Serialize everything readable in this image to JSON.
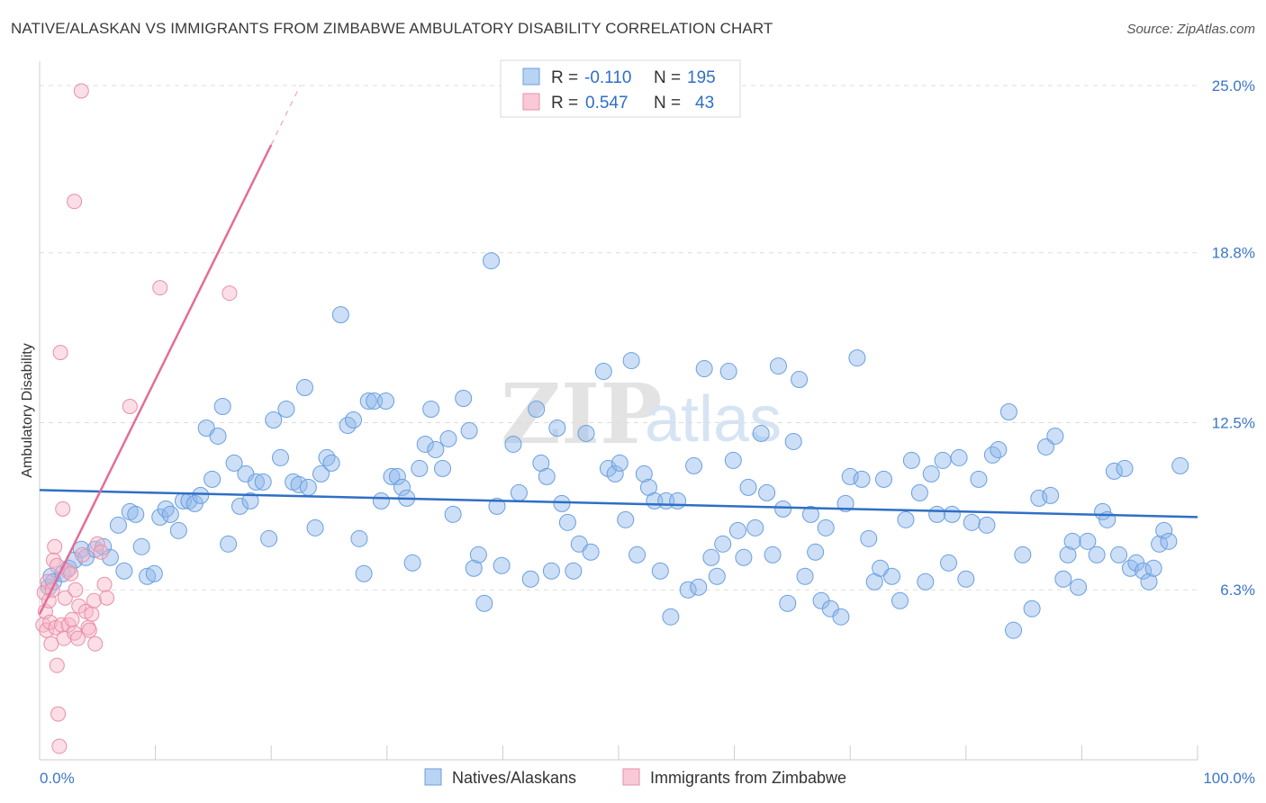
{
  "header": {
    "title": "NATIVE/ALASKAN VS IMMIGRANTS FROM ZIMBABWE AMBULATORY DISABILITY CORRELATION CHART",
    "source": "Source: ZipAtlas.com"
  },
  "watermark": {
    "zip": "ZIP",
    "atlas": "atlas"
  },
  "chart_data": {
    "type": "scatter",
    "title": "NATIVE/ALASKAN VS IMMIGRANTS FROM ZIMBABWE AMBULATORY DISABILITY CORRELATION CHART",
    "xlabel": "",
    "ylabel": "Ambulatory Disability",
    "xlim": [
      0,
      100
    ],
    "ylim": [
      0,
      25.9
    ],
    "x_tick_labels": [
      "0.0%",
      "100.0%"
    ],
    "y_ticks": [
      {
        "value": 6.3,
        "label": "6.3%"
      },
      {
        "value": 12.5,
        "label": "12.5%"
      },
      {
        "value": 18.8,
        "label": "18.8%"
      },
      {
        "value": 25.0,
        "label": "25.0%"
      }
    ],
    "grid": "horizontal dashed",
    "legend_position": "top-center",
    "stats": [
      {
        "r_label": "R =",
        "r": "-0.110",
        "n_label": "N =",
        "n": "195"
      },
      {
        "r_label": "R =",
        "r": "0.547",
        "n_label": "N =",
        "n": "43"
      }
    ],
    "series": [
      {
        "name": "Natives/Alaskans",
        "color": "#8fb8ea",
        "stroke": "#6a9fe0",
        "trend": {
          "x0": 0,
          "y0": 10.0,
          "x1": 100,
          "y1": 9.0,
          "color": "#2f6fc6"
        },
        "points": [
          [
            0.8,
            6.4
          ],
          [
            1.0,
            6.8
          ],
          [
            1.2,
            6.6
          ],
          [
            2.0,
            6.9
          ],
          [
            2.5,
            7.1
          ],
          [
            3.0,
            7.4
          ],
          [
            3.6,
            7.8
          ],
          [
            4.0,
            7.5
          ],
          [
            4.8,
            7.8
          ],
          [
            5.5,
            7.9
          ],
          [
            6.1,
            7.5
          ],
          [
            6.8,
            8.7
          ],
          [
            7.3,
            7.0
          ],
          [
            7.8,
            9.2
          ],
          [
            8.3,
            9.1
          ],
          [
            8.8,
            7.9
          ],
          [
            9.3,
            6.8
          ],
          [
            9.9,
            6.9
          ],
          [
            10.4,
            9.0
          ],
          [
            10.9,
            9.3
          ],
          [
            11.3,
            9.1
          ],
          [
            12.0,
            8.5
          ],
          [
            12.4,
            9.6
          ],
          [
            12.9,
            9.6
          ],
          [
            13.4,
            9.5
          ],
          [
            13.9,
            9.8
          ],
          [
            14.4,
            12.3
          ],
          [
            14.9,
            10.4
          ],
          [
            15.4,
            12.0
          ],
          [
            15.8,
            13.1
          ],
          [
            16.3,
            8.0
          ],
          [
            16.8,
            11.0
          ],
          [
            17.3,
            9.4
          ],
          [
            17.8,
            10.6
          ],
          [
            18.2,
            9.6
          ],
          [
            18.7,
            10.3
          ],
          [
            19.3,
            10.3
          ],
          [
            19.8,
            8.2
          ],
          [
            20.2,
            12.6
          ],
          [
            20.8,
            11.2
          ],
          [
            21.3,
            13.0
          ],
          [
            21.9,
            10.3
          ],
          [
            22.4,
            10.2
          ],
          [
            22.9,
            13.8
          ],
          [
            23.2,
            10.1
          ],
          [
            23.8,
            8.6
          ],
          [
            24.3,
            10.6
          ],
          [
            24.8,
            11.2
          ],
          [
            25.2,
            11.0
          ],
          [
            26.0,
            16.5
          ],
          [
            26.6,
            12.4
          ],
          [
            27.1,
            12.6
          ],
          [
            27.6,
            8.2
          ],
          [
            28.0,
            6.9
          ],
          [
            28.4,
            13.3
          ],
          [
            28.9,
            13.3
          ],
          [
            29.5,
            9.6
          ],
          [
            29.9,
            13.3
          ],
          [
            30.4,
            10.5
          ],
          [
            30.9,
            10.5
          ],
          [
            31.3,
            10.1
          ],
          [
            31.7,
            9.7
          ],
          [
            32.2,
            7.3
          ],
          [
            32.8,
            10.8
          ],
          [
            33.3,
            11.7
          ],
          [
            33.8,
            13.0
          ],
          [
            34.2,
            11.5
          ],
          [
            34.8,
            10.8
          ],
          [
            35.3,
            11.9
          ],
          [
            35.7,
            9.1
          ],
          [
            36.6,
            13.4
          ],
          [
            37.1,
            12.2
          ],
          [
            37.5,
            7.1
          ],
          [
            37.9,
            7.6
          ],
          [
            38.4,
            5.8
          ],
          [
            39.0,
            18.5
          ],
          [
            39.5,
            9.4
          ],
          [
            39.9,
            7.2
          ],
          [
            40.9,
            11.7
          ],
          [
            41.4,
            9.9
          ],
          [
            42.4,
            6.7
          ],
          [
            42.9,
            13.0
          ],
          [
            43.3,
            11.0
          ],
          [
            43.8,
            10.5
          ],
          [
            44.2,
            7.0
          ],
          [
            44.7,
            12.3
          ],
          [
            45.1,
            9.5
          ],
          [
            45.6,
            8.8
          ],
          [
            46.1,
            7.0
          ],
          [
            46.6,
            8.0
          ],
          [
            47.2,
            12.1
          ],
          [
            47.6,
            7.7
          ],
          [
            48.7,
            14.4
          ],
          [
            49.1,
            10.8
          ],
          [
            49.7,
            10.6
          ],
          [
            50.1,
            11.0
          ],
          [
            50.6,
            8.9
          ],
          [
            51.1,
            14.8
          ],
          [
            51.6,
            7.6
          ],
          [
            52.2,
            10.6
          ],
          [
            52.6,
            10.1
          ],
          [
            53.1,
            9.6
          ],
          [
            53.6,
            7.0
          ],
          [
            54.1,
            9.6
          ],
          [
            54.5,
            5.3
          ],
          [
            55.1,
            9.6
          ],
          [
            56.0,
            6.3
          ],
          [
            56.5,
            10.9
          ],
          [
            56.9,
            6.4
          ],
          [
            57.4,
            14.5
          ],
          [
            58.0,
            7.5
          ],
          [
            58.5,
            6.8
          ],
          [
            59.0,
            8.0
          ],
          [
            59.5,
            14.4
          ],
          [
            59.9,
            11.1
          ],
          [
            60.3,
            8.5
          ],
          [
            60.8,
            7.5
          ],
          [
            61.2,
            10.1
          ],
          [
            61.8,
            8.6
          ],
          [
            62.3,
            12.1
          ],
          [
            62.8,
            9.9
          ],
          [
            63.3,
            7.6
          ],
          [
            63.8,
            14.6
          ],
          [
            64.2,
            9.3
          ],
          [
            64.6,
            5.8
          ],
          [
            65.1,
            11.8
          ],
          [
            65.6,
            14.1
          ],
          [
            66.1,
            6.8
          ],
          [
            66.6,
            9.1
          ],
          [
            67.0,
            7.7
          ],
          [
            67.5,
            5.9
          ],
          [
            67.9,
            8.6
          ],
          [
            68.3,
            5.6
          ],
          [
            69.2,
            5.3
          ],
          [
            69.6,
            9.5
          ],
          [
            70.0,
            10.5
          ],
          [
            70.6,
            14.9
          ],
          [
            71.0,
            10.4
          ],
          [
            71.6,
            8.2
          ],
          [
            72.1,
            6.6
          ],
          [
            72.6,
            7.1
          ],
          [
            72.9,
            10.4
          ],
          [
            73.6,
            6.8
          ],
          [
            74.3,
            5.9
          ],
          [
            74.8,
            8.9
          ],
          [
            75.3,
            11.1
          ],
          [
            76.0,
            9.9
          ],
          [
            76.5,
            6.6
          ],
          [
            77.0,
            10.6
          ],
          [
            77.5,
            9.1
          ],
          [
            78.0,
            11.1
          ],
          [
            78.5,
            7.3
          ],
          [
            78.8,
            9.1
          ],
          [
            79.4,
            11.2
          ],
          [
            80.0,
            6.7
          ],
          [
            80.5,
            8.8
          ],
          [
            81.1,
            10.4
          ],
          [
            81.8,
            8.7
          ],
          [
            82.3,
            11.3
          ],
          [
            82.8,
            11.5
          ],
          [
            83.7,
            12.9
          ],
          [
            84.1,
            4.8
          ],
          [
            84.9,
            7.6
          ],
          [
            85.7,
            5.6
          ],
          [
            86.3,
            9.7
          ],
          [
            86.9,
            11.6
          ],
          [
            87.3,
            9.8
          ],
          [
            87.7,
            12.0
          ],
          [
            88.4,
            6.7
          ],
          [
            88.8,
            7.6
          ],
          [
            89.2,
            8.1
          ],
          [
            89.7,
            6.4
          ],
          [
            90.5,
            8.1
          ],
          [
            91.3,
            7.6
          ],
          [
            91.8,
            9.2
          ],
          [
            92.2,
            8.9
          ],
          [
            92.8,
            10.7
          ],
          [
            93.2,
            7.6
          ],
          [
            93.7,
            10.8
          ],
          [
            94.2,
            7.1
          ],
          [
            94.7,
            7.3
          ],
          [
            95.3,
            7.0
          ],
          [
            95.8,
            6.6
          ],
          [
            96.2,
            7.1
          ],
          [
            96.7,
            8.0
          ],
          [
            97.1,
            8.5
          ],
          [
            97.5,
            8.1
          ],
          [
            98.5,
            10.9
          ]
        ]
      },
      {
        "name": "Immigrants from Zimbabwe",
        "color": "#f7b5c8",
        "stroke": "#e98fab",
        "trend": {
          "x0": 0,
          "y0": 5.4,
          "x1": 20.0,
          "y1": 22.8,
          "dash_x1": 22.5,
          "dash_y1": 25.0,
          "color": "#e36d97"
        },
        "points": [
          [
            0.3,
            5.0
          ],
          [
            0.4,
            6.2
          ],
          [
            0.5,
            5.5
          ],
          [
            0.6,
            4.8
          ],
          [
            0.7,
            6.6
          ],
          [
            0.8,
            5.9
          ],
          [
            0.9,
            5.1
          ],
          [
            1.0,
            4.3
          ],
          [
            1.1,
            6.3
          ],
          [
            1.2,
            7.4
          ],
          [
            1.3,
            7.9
          ],
          [
            1.4,
            4.9
          ],
          [
            1.5,
            3.5
          ],
          [
            1.6,
            1.7
          ],
          [
            1.7,
            0.5
          ],
          [
            1.8,
            15.1
          ],
          [
            1.9,
            5.0
          ],
          [
            2.0,
            9.3
          ],
          [
            2.1,
            4.5
          ],
          [
            2.2,
            6.0
          ],
          [
            2.4,
            7.0
          ],
          [
            2.5,
            5.0
          ],
          [
            2.7,
            6.9
          ],
          [
            2.8,
            5.2
          ],
          [
            3.0,
            4.7
          ],
          [
            3.1,
            6.3
          ],
          [
            3.3,
            4.5
          ],
          [
            3.4,
            5.7
          ],
          [
            3.7,
            7.6
          ],
          [
            4.0,
            5.5
          ],
          [
            4.2,
            4.9
          ],
          [
            4.3,
            4.8
          ],
          [
            4.5,
            5.4
          ],
          [
            4.7,
            5.9
          ],
          [
            4.8,
            4.3
          ],
          [
            5.0,
            8.0
          ],
          [
            5.3,
            7.7
          ],
          [
            5.6,
            6.5
          ],
          [
            5.8,
            6.0
          ],
          [
            7.8,
            13.1
          ],
          [
            10.4,
            17.5
          ],
          [
            16.4,
            17.3
          ],
          [
            3.0,
            20.7
          ],
          [
            3.6,
            24.8
          ],
          [
            1.5,
            7.2
          ]
        ]
      }
    ]
  },
  "legend": {
    "items": [
      {
        "label": "Natives/Alaskans"
      },
      {
        "label": "Immigrants from Zimbabwe"
      }
    ]
  }
}
